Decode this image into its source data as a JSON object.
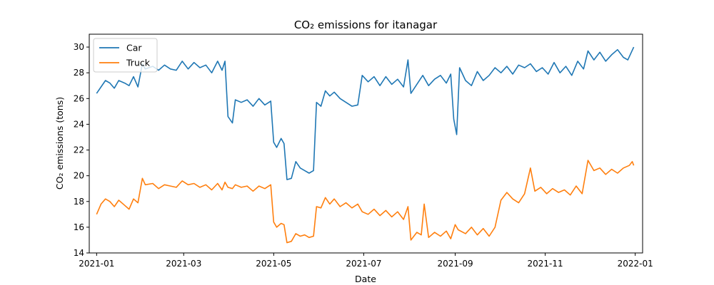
{
  "chart_data": {
    "type": "line",
    "title": "CO₂ emissions for itanagar",
    "xlabel": "Date",
    "ylabel": "CO₂ emissions (tons)",
    "xlim": [
      "2020-12-27",
      "2022-01-06"
    ],
    "ylim": [
      14,
      31
    ],
    "x_ticks": [
      "2021-01",
      "2021-03",
      "2021-05",
      "2021-07",
      "2021-09",
      "2021-11",
      "2022-01"
    ],
    "y_ticks": [
      14,
      16,
      18,
      20,
      22,
      24,
      26,
      28,
      30
    ],
    "legend": {
      "placement": "top-left"
    },
    "series": [
      {
        "name": "Car",
        "color": "#1f77b4",
        "points": [
          [
            "2021-01-01",
            26.4
          ],
          [
            "2021-01-04",
            26.9
          ],
          [
            "2021-01-07",
            27.4
          ],
          [
            "2021-01-10",
            27.2
          ],
          [
            "2021-01-13",
            26.8
          ],
          [
            "2021-01-16",
            27.4
          ],
          [
            "2021-01-20",
            27.2
          ],
          [
            "2021-01-23",
            27.0
          ],
          [
            "2021-01-26",
            27.7
          ],
          [
            "2021-01-29",
            26.9
          ],
          [
            "2021-02-01",
            28.7
          ],
          [
            "2021-02-03",
            28.3
          ],
          [
            "2021-02-08",
            28.5
          ],
          [
            "2021-02-12",
            28.2
          ],
          [
            "2021-02-16",
            28.6
          ],
          [
            "2021-02-20",
            28.3
          ],
          [
            "2021-02-24",
            28.2
          ],
          [
            "2021-02-28",
            28.9
          ],
          [
            "2021-03-04",
            28.3
          ],
          [
            "2021-03-08",
            28.8
          ],
          [
            "2021-03-12",
            28.4
          ],
          [
            "2021-03-16",
            28.6
          ],
          [
            "2021-03-20",
            28.0
          ],
          [
            "2021-03-24",
            28.9
          ],
          [
            "2021-03-27",
            28.2
          ],
          [
            "2021-03-29",
            28.9
          ],
          [
            "2021-03-31",
            24.6
          ],
          [
            "2021-04-03",
            24.1
          ],
          [
            "2021-04-05",
            25.9
          ],
          [
            "2021-04-09",
            25.7
          ],
          [
            "2021-04-13",
            25.9
          ],
          [
            "2021-04-17",
            25.4
          ],
          [
            "2021-04-21",
            26.0
          ],
          [
            "2021-04-25",
            25.5
          ],
          [
            "2021-04-29",
            25.8
          ],
          [
            "2021-05-01",
            22.6
          ],
          [
            "2021-05-03",
            22.2
          ],
          [
            "2021-05-06",
            22.9
          ],
          [
            "2021-05-08",
            22.5
          ],
          [
            "2021-05-10",
            19.7
          ],
          [
            "2021-05-13",
            19.8
          ],
          [
            "2021-05-16",
            21.1
          ],
          [
            "2021-05-19",
            20.6
          ],
          [
            "2021-05-22",
            20.4
          ],
          [
            "2021-05-25",
            20.2
          ],
          [
            "2021-05-28",
            20.4
          ],
          [
            "2021-05-30",
            25.7
          ],
          [
            "2021-06-02",
            25.4
          ],
          [
            "2021-06-05",
            26.6
          ],
          [
            "2021-06-08",
            26.2
          ],
          [
            "2021-06-11",
            26.5
          ],
          [
            "2021-06-15",
            26.0
          ],
          [
            "2021-06-19",
            25.7
          ],
          [
            "2021-06-23",
            25.4
          ],
          [
            "2021-06-27",
            25.5
          ],
          [
            "2021-06-30",
            27.8
          ],
          [
            "2021-07-04",
            27.3
          ],
          [
            "2021-07-08",
            27.7
          ],
          [
            "2021-07-12",
            27.0
          ],
          [
            "2021-07-16",
            27.7
          ],
          [
            "2021-07-20",
            27.1
          ],
          [
            "2021-07-24",
            27.5
          ],
          [
            "2021-07-28",
            26.9
          ],
          [
            "2021-07-31",
            29.0
          ],
          [
            "2021-08-02",
            26.4
          ],
          [
            "2021-08-06",
            27.1
          ],
          [
            "2021-08-10",
            27.8
          ],
          [
            "2021-08-14",
            27.0
          ],
          [
            "2021-08-18",
            27.5
          ],
          [
            "2021-08-22",
            27.8
          ],
          [
            "2021-08-26",
            27.2
          ],
          [
            "2021-08-29",
            27.9
          ],
          [
            "2021-08-31",
            24.4
          ],
          [
            "2021-09-02",
            23.2
          ],
          [
            "2021-09-04",
            28.4
          ],
          [
            "2021-09-08",
            27.4
          ],
          [
            "2021-09-12",
            27.0
          ],
          [
            "2021-09-16",
            28.1
          ],
          [
            "2021-09-20",
            27.4
          ],
          [
            "2021-09-24",
            27.8
          ],
          [
            "2021-09-28",
            28.4
          ],
          [
            "2021-10-02",
            28.0
          ],
          [
            "2021-10-06",
            28.5
          ],
          [
            "2021-10-10",
            27.9
          ],
          [
            "2021-10-14",
            28.6
          ],
          [
            "2021-10-18",
            28.4
          ],
          [
            "2021-10-22",
            28.7
          ],
          [
            "2021-10-26",
            28.1
          ],
          [
            "2021-10-30",
            28.4
          ],
          [
            "2021-11-03",
            27.9
          ],
          [
            "2021-11-07",
            28.8
          ],
          [
            "2021-11-11",
            28.0
          ],
          [
            "2021-11-15",
            28.5
          ],
          [
            "2021-11-19",
            27.8
          ],
          [
            "2021-11-23",
            28.9
          ],
          [
            "2021-11-27",
            28.3
          ],
          [
            "2021-11-30",
            29.7
          ],
          [
            "2021-12-04",
            29.0
          ],
          [
            "2021-12-08",
            29.6
          ],
          [
            "2021-12-12",
            28.9
          ],
          [
            "2021-12-16",
            29.4
          ],
          [
            "2021-12-20",
            29.8
          ],
          [
            "2021-12-24",
            29.2
          ],
          [
            "2021-12-27",
            29.0
          ],
          [
            "2021-12-31",
            30.0
          ]
        ]
      },
      {
        "name": "Truck",
        "color": "#ff7f0e",
        "points": [
          [
            "2021-01-01",
            17.0
          ],
          [
            "2021-01-04",
            17.8
          ],
          [
            "2021-01-07",
            18.2
          ],
          [
            "2021-01-10",
            18.0
          ],
          [
            "2021-01-13",
            17.6
          ],
          [
            "2021-01-16",
            18.1
          ],
          [
            "2021-01-20",
            17.7
          ],
          [
            "2021-01-23",
            17.4
          ],
          [
            "2021-01-26",
            18.2
          ],
          [
            "2021-01-29",
            17.9
          ],
          [
            "2021-02-01",
            19.8
          ],
          [
            "2021-02-03",
            19.3
          ],
          [
            "2021-02-08",
            19.4
          ],
          [
            "2021-02-12",
            19.0
          ],
          [
            "2021-02-16",
            19.3
          ],
          [
            "2021-02-20",
            19.2
          ],
          [
            "2021-02-24",
            19.1
          ],
          [
            "2021-02-28",
            19.6
          ],
          [
            "2021-03-04",
            19.3
          ],
          [
            "2021-03-08",
            19.4
          ],
          [
            "2021-03-12",
            19.1
          ],
          [
            "2021-03-16",
            19.3
          ],
          [
            "2021-03-20",
            18.9
          ],
          [
            "2021-03-24",
            19.4
          ],
          [
            "2021-03-27",
            18.9
          ],
          [
            "2021-03-29",
            19.5
          ],
          [
            "2021-03-31",
            19.1
          ],
          [
            "2021-04-03",
            19.0
          ],
          [
            "2021-04-05",
            19.3
          ],
          [
            "2021-04-09",
            19.1
          ],
          [
            "2021-04-13",
            19.2
          ],
          [
            "2021-04-17",
            18.8
          ],
          [
            "2021-04-21",
            19.2
          ],
          [
            "2021-04-25",
            19.0
          ],
          [
            "2021-04-29",
            19.3
          ],
          [
            "2021-05-01",
            16.4
          ],
          [
            "2021-05-03",
            16.0
          ],
          [
            "2021-05-06",
            16.3
          ],
          [
            "2021-05-08",
            16.2
          ],
          [
            "2021-05-10",
            14.8
          ],
          [
            "2021-05-13",
            14.9
          ],
          [
            "2021-05-16",
            15.5
          ],
          [
            "2021-05-19",
            15.3
          ],
          [
            "2021-05-22",
            15.4
          ],
          [
            "2021-05-25",
            15.2
          ],
          [
            "2021-05-28",
            15.3
          ],
          [
            "2021-05-30",
            17.6
          ],
          [
            "2021-06-02",
            17.5
          ],
          [
            "2021-06-05",
            18.3
          ],
          [
            "2021-06-08",
            17.8
          ],
          [
            "2021-06-11",
            18.2
          ],
          [
            "2021-06-15",
            17.6
          ],
          [
            "2021-06-19",
            17.9
          ],
          [
            "2021-06-23",
            17.5
          ],
          [
            "2021-06-27",
            17.8
          ],
          [
            "2021-06-30",
            17.2
          ],
          [
            "2021-07-04",
            17.0
          ],
          [
            "2021-07-08",
            17.4
          ],
          [
            "2021-07-12",
            16.9
          ],
          [
            "2021-07-16",
            17.3
          ],
          [
            "2021-07-20",
            16.8
          ],
          [
            "2021-07-24",
            17.2
          ],
          [
            "2021-07-28",
            16.6
          ],
          [
            "2021-07-31",
            17.6
          ],
          [
            "2021-08-02",
            15.0
          ],
          [
            "2021-08-06",
            15.6
          ],
          [
            "2021-08-09",
            15.4
          ],
          [
            "2021-08-11",
            17.8
          ],
          [
            "2021-08-14",
            15.2
          ],
          [
            "2021-08-18",
            15.6
          ],
          [
            "2021-08-22",
            15.3
          ],
          [
            "2021-08-26",
            15.7
          ],
          [
            "2021-08-29",
            15.1
          ],
          [
            "2021-09-01",
            16.2
          ],
          [
            "2021-09-03",
            15.8
          ],
          [
            "2021-09-08",
            15.5
          ],
          [
            "2021-09-12",
            16.0
          ],
          [
            "2021-09-16",
            15.4
          ],
          [
            "2021-09-20",
            15.9
          ],
          [
            "2021-09-24",
            15.3
          ],
          [
            "2021-09-28",
            16.0
          ],
          [
            "2021-10-02",
            18.1
          ],
          [
            "2021-10-06",
            18.7
          ],
          [
            "2021-10-10",
            18.2
          ],
          [
            "2021-10-14",
            17.9
          ],
          [
            "2021-10-18",
            18.6
          ],
          [
            "2021-10-22",
            20.6
          ],
          [
            "2021-10-25",
            18.8
          ],
          [
            "2021-10-29",
            19.1
          ],
          [
            "2021-11-02",
            18.6
          ],
          [
            "2021-11-06",
            19.0
          ],
          [
            "2021-11-10",
            18.7
          ],
          [
            "2021-11-14",
            18.9
          ],
          [
            "2021-11-18",
            18.5
          ],
          [
            "2021-11-22",
            19.2
          ],
          [
            "2021-11-26",
            18.6
          ],
          [
            "2021-11-30",
            21.2
          ],
          [
            "2021-12-04",
            20.4
          ],
          [
            "2021-12-08",
            20.6
          ],
          [
            "2021-12-12",
            20.1
          ],
          [
            "2021-12-16",
            20.5
          ],
          [
            "2021-12-20",
            20.2
          ],
          [
            "2021-12-24",
            20.6
          ],
          [
            "2021-12-28",
            20.8
          ],
          [
            "2021-12-30",
            21.1
          ],
          [
            "2021-12-31",
            20.8
          ]
        ]
      }
    ]
  }
}
